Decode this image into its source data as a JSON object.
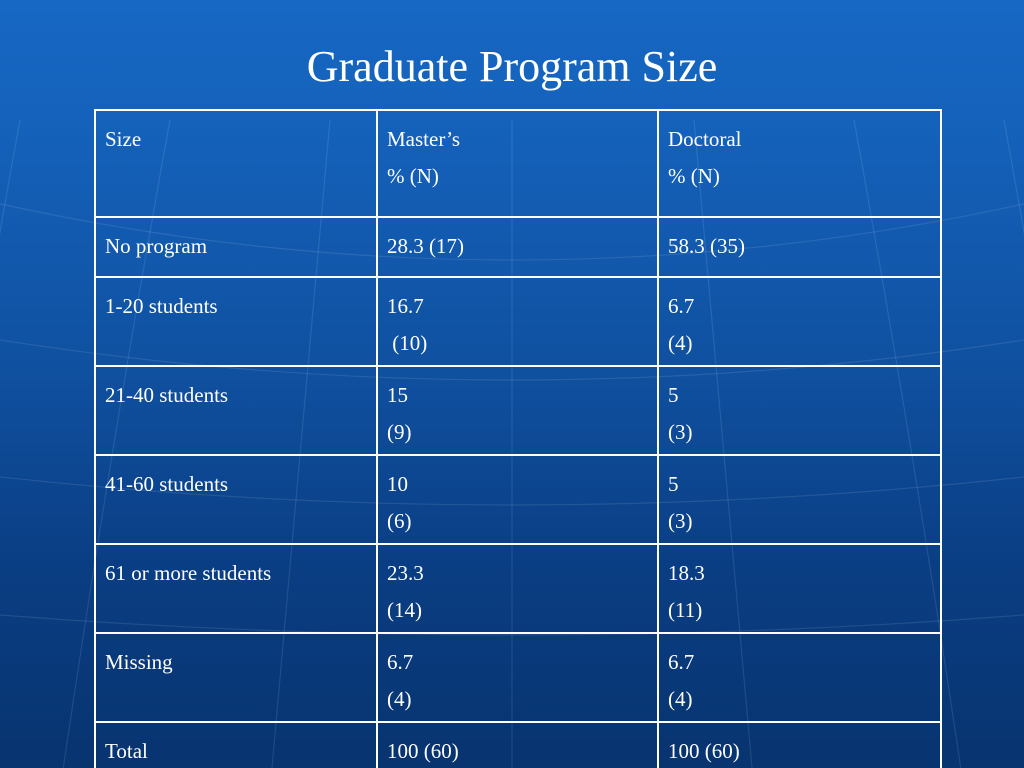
{
  "title": "Graduate Program Size",
  "table": {
    "headers": [
      [
        "Size"
      ],
      [
        "Master’s",
        "% (N)"
      ],
      [
        "Doctoral",
        "% (N)"
      ]
    ],
    "rows": [
      {
        "label": "No program",
        "masters": [
          "28.3 (17)"
        ],
        "doctoral": [
          "58.3 (35)"
        ]
      },
      {
        "label": "1-20 students",
        "masters": [
          "16.7",
          " (10)"
        ],
        "doctoral": [
          "6.7",
          "(4)"
        ]
      },
      {
        "label": "21-40 students",
        "masters": [
          "15",
          "(9)"
        ],
        "doctoral": [
          "5",
          "(3)"
        ]
      },
      {
        "label": "41-60 students",
        "masters": [
          "10",
          "(6)"
        ],
        "doctoral": [
          "5",
          "(3)"
        ]
      },
      {
        "label": "61 or more students",
        "masters": [
          "23.3",
          "(14)"
        ],
        "doctoral": [
          "18.3",
          "(11)"
        ]
      },
      {
        "label": "Missing",
        "masters": [
          "6.7",
          "(4)"
        ],
        "doctoral": [
          "6.7",
          "(4)"
        ]
      },
      {
        "label": "Total",
        "masters": [
          "100 (60)"
        ],
        "doctoral": [
          "100 (60)"
        ]
      }
    ]
  }
}
